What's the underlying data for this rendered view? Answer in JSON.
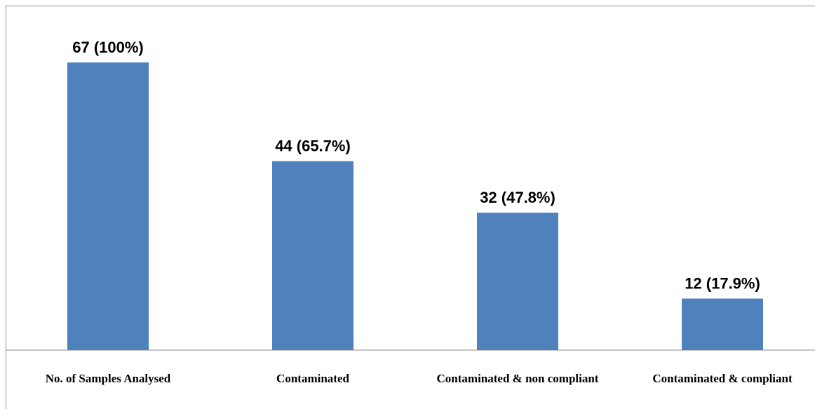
{
  "chart_data": {
    "type": "bar",
    "title": "",
    "xlabel": "",
    "ylabel": "",
    "categories": [
      "No. of Samples Analysed",
      "Contaminated",
      "Contaminated & non compliant",
      "Contaminated & compliant"
    ],
    "values": [
      67,
      44,
      32,
      12
    ],
    "data_labels": [
      "67 (100%)",
      "44 (65.7%)",
      "32 (47.8%)",
      "12 (17.9%)"
    ],
    "ylim": [
      0,
      70
    ],
    "grid": false,
    "legend": "none",
    "bar_color": "#4f81bd"
  }
}
